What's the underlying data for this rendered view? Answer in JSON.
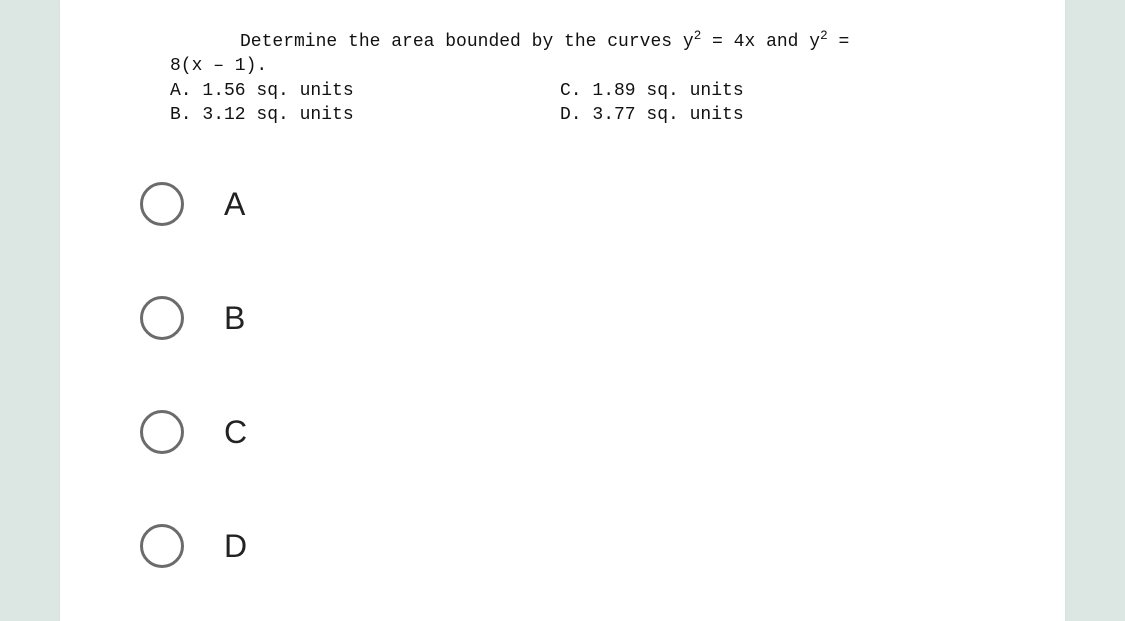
{
  "question": {
    "line1_prefix": "Determine the area bounded by the curves ",
    "eq1": "y² = 4x",
    "mid": " and ",
    "eq2": "y² =",
    "line2": "8(x – 1).",
    "answers": {
      "A": "A. 1.56 sq. units",
      "B": "B. 3.12 sq. units",
      "C": "C. 1.89 sq. units",
      "D": "D. 3.77 sq. units"
    }
  },
  "options": {
    "A": "A",
    "B": "B",
    "C": "C",
    "D": "D"
  },
  "style": {
    "page_bg": "#dce7e4",
    "card_bg": "#ffffff",
    "radio_border": "#6b6b6b",
    "text_color": "#111111",
    "mono_font": "Courier New",
    "question_fontsize": 18,
    "option_fontsize": 32,
    "radio_size": 44,
    "radio_border_width": 3,
    "option_gap": 70
  }
}
